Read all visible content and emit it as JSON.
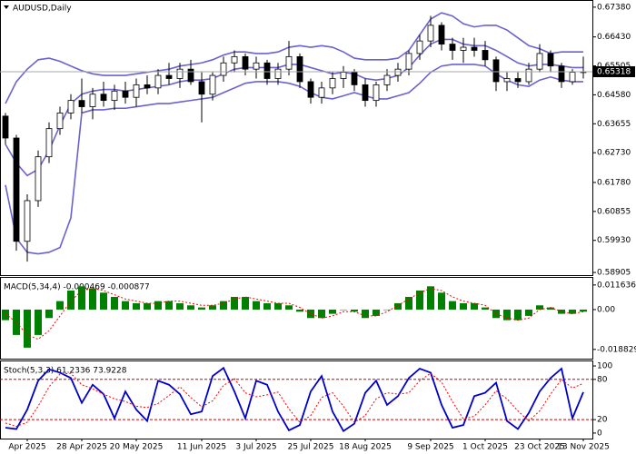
{
  "chart_data": [
    {
      "type": "candlestick",
      "title": "AUDUSD,Daily",
      "categories": [
        null,
        null,
        "Apr 2025",
        null,
        null,
        null,
        null,
        "28 Apr 2025",
        null,
        null,
        null,
        null,
        "20 May 2025",
        null,
        null,
        null,
        null,
        null,
        "11 Jun 2025",
        null,
        null,
        null,
        null,
        "3 Jul 2025",
        null,
        null,
        null,
        null,
        "25 Jul 2025",
        null,
        null,
        null,
        null,
        "18 Aug 2025",
        null,
        null,
        null,
        null,
        null,
        "9 Sep 2025",
        null,
        null,
        null,
        null,
        "1 Oct 2025",
        null,
        null,
        null,
        null,
        "23 Oct 2025",
        null,
        null,
        null,
        "13 Nov 2025"
      ],
      "open": [
        0.639,
        0.632,
        0.599,
        0.612,
        0.626,
        0.635,
        0.64,
        0.644,
        0.642,
        0.646,
        0.644,
        0.647,
        0.645,
        0.649,
        0.648,
        0.652,
        0.651,
        0.654,
        0.65,
        0.646,
        0.652,
        0.656,
        0.658,
        0.654,
        0.656,
        0.651,
        0.654,
        0.658,
        0.65,
        0.645,
        0.648,
        0.651,
        0.653,
        0.649,
        0.644,
        0.649,
        0.652,
        0.654,
        0.659,
        0.663,
        0.668,
        0.662,
        0.66,
        0.661,
        0.66,
        0.657,
        0.65,
        0.651,
        0.65,
        0.654,
        0.659,
        0.655,
        0.65,
        0.653
      ],
      "high": [
        0.64,
        0.633,
        0.614,
        0.628,
        0.637,
        0.642,
        0.646,
        0.651,
        0.648,
        0.65,
        0.649,
        0.65,
        0.651,
        0.652,
        0.654,
        0.656,
        0.656,
        0.657,
        0.653,
        0.653,
        0.658,
        0.66,
        0.659,
        0.658,
        0.657,
        0.656,
        0.663,
        0.659,
        0.651,
        0.65,
        0.653,
        0.655,
        0.654,
        0.651,
        0.65,
        0.654,
        0.656,
        0.66,
        0.665,
        0.671,
        0.669,
        0.664,
        0.664,
        0.664,
        0.663,
        0.658,
        0.653,
        0.653,
        0.656,
        0.662,
        0.66,
        0.656,
        0.654,
        0.658
      ],
      "low": [
        0.63,
        0.596,
        0.5925,
        0.61,
        0.624,
        0.633,
        0.638,
        0.64,
        0.638,
        0.642,
        0.641,
        0.643,
        0.642,
        0.646,
        0.646,
        0.649,
        0.648,
        0.649,
        0.637,
        0.644,
        0.65,
        0.653,
        0.652,
        0.651,
        0.649,
        0.649,
        0.652,
        0.648,
        0.643,
        0.643,
        0.646,
        0.648,
        0.647,
        0.642,
        0.642,
        0.647,
        0.65,
        0.652,
        0.657,
        0.661,
        0.66,
        0.657,
        0.656,
        0.658,
        0.655,
        0.647,
        0.647,
        0.648,
        0.649,
        0.653,
        0.653,
        0.648,
        0.649,
        0.651
      ],
      "close": [
        0.632,
        0.599,
        0.612,
        0.626,
        0.635,
        0.64,
        0.644,
        0.642,
        0.646,
        0.644,
        0.647,
        0.645,
        0.649,
        0.648,
        0.652,
        0.651,
        0.654,
        0.65,
        0.646,
        0.652,
        0.656,
        0.658,
        0.654,
        0.656,
        0.651,
        0.654,
        0.658,
        0.65,
        0.645,
        0.648,
        0.651,
        0.653,
        0.649,
        0.644,
        0.649,
        0.652,
        0.654,
        0.659,
        0.663,
        0.668,
        0.662,
        0.66,
        0.661,
        0.66,
        0.657,
        0.65,
        0.651,
        0.65,
        0.654,
        0.659,
        0.655,
        0.65,
        0.653,
        0.6532
      ],
      "series": [
        {
          "color": "#6a62d0",
          "values": [
            0.643,
            0.65,
            0.654,
            0.657,
            0.6575,
            0.6565,
            0.655,
            0.6535,
            0.6525,
            0.652,
            0.652,
            0.652,
            0.6525,
            0.653,
            0.6535,
            0.654,
            0.655,
            0.6555,
            0.656,
            0.657,
            0.6585,
            0.6595,
            0.6595,
            0.659,
            0.659,
            0.6595,
            0.661,
            0.6615,
            0.661,
            0.6615,
            0.661,
            0.6595,
            0.6575,
            0.657,
            0.657,
            0.657,
            0.6575,
            0.66,
            0.665,
            0.67,
            0.672,
            0.671,
            0.6685,
            0.6675,
            0.668,
            0.668,
            0.6665,
            0.664,
            0.6615,
            0.6605,
            0.659,
            0.6595,
            0.6595,
            0.6595
          ]
        },
        {
          "color": "#6a62d0",
          "values": [
            0.63,
            0.624,
            0.62,
            0.622,
            0.628,
            0.636,
            0.643,
            0.646,
            0.647,
            0.6475,
            0.6475,
            0.647,
            0.6475,
            0.648,
            0.6485,
            0.649,
            0.65,
            0.6505,
            0.6505,
            0.651,
            0.6525,
            0.654,
            0.6545,
            0.6545,
            0.6545,
            0.6545,
            0.6555,
            0.6555,
            0.6545,
            0.6535,
            0.6525,
            0.653,
            0.6525,
            0.651,
            0.6505,
            0.651,
            0.652,
            0.6545,
            0.6585,
            0.662,
            0.6635,
            0.6635,
            0.662,
            0.6615,
            0.6615,
            0.66,
            0.658,
            0.656,
            0.655,
            0.6555,
            0.6555,
            0.655,
            0.6545,
            0.6545
          ]
        },
        {
          "color": "#6a62d0",
          "values": [
            0.617,
            0.6,
            0.5955,
            0.595,
            0.5955,
            0.597,
            0.6065,
            0.64,
            0.641,
            0.641,
            0.6415,
            0.6415,
            0.642,
            0.6425,
            0.643,
            0.643,
            0.6435,
            0.644,
            0.6445,
            0.645,
            0.6465,
            0.648,
            0.6495,
            0.65,
            0.65,
            0.65,
            0.6495,
            0.6485,
            0.6465,
            0.645,
            0.6445,
            0.6455,
            0.6465,
            0.6455,
            0.6445,
            0.6445,
            0.6455,
            0.6465,
            0.6495,
            0.653,
            0.655,
            0.6555,
            0.6555,
            0.6555,
            0.655,
            0.6525,
            0.6505,
            0.649,
            0.6485,
            0.6505,
            0.6515,
            0.6505,
            0.65,
            0.65
          ]
        }
      ],
      "ylim": [
        0.5882,
        0.6758
      ],
      "yticks": [
        {
          "value": 0.6738,
          "label": "0.67380"
        },
        {
          "value": 0.6643,
          "label": "0.66430"
        },
        {
          "value": 0.65505,
          "label": "0.65505"
        },
        {
          "value": 0.6458,
          "label": "0.64580"
        },
        {
          "value": 0.63655,
          "label": "0.63655"
        },
        {
          "value": 0.6273,
          "label": "0.62730"
        },
        {
          "value": 0.6178,
          "label": "0.61780"
        },
        {
          "value": 0.60855,
          "label": "0.60855"
        },
        {
          "value": 0.5993,
          "label": "0.59930"
        },
        {
          "value": 0.58905,
          "label": "0.58905"
        }
      ],
      "last_price": {
        "value": 0.65318,
        "label": "0.65318"
      }
    },
    {
      "type": "bar",
      "title": "MACD(5,34,4) -0.000469 -0.000877",
      "color": "#008000",
      "values": [
        -0.005,
        -0.012,
        -0.018,
        -0.012,
        -0.004,
        0.004,
        0.009,
        0.011,
        0.01,
        0.008,
        0.006,
        0.004,
        0.003,
        0.003,
        0.004,
        0.004,
        0.003,
        0.002,
        0.001,
        0.002,
        0.004,
        0.006,
        0.006,
        0.004,
        0.003,
        0.003,
        0.002,
        -0.001,
        -0.004,
        -0.004,
        -0.002,
        0.0,
        -0.001,
        -0.004,
        -0.003,
        0.0,
        0.003,
        0.006,
        0.009,
        0.011,
        0.008,
        0.004,
        0.003,
        0.003,
        0.001,
        -0.004,
        -0.005,
        -0.005,
        -0.003,
        0.002,
        0.001,
        -0.002,
        -0.002,
        -0.001
      ],
      "series": [
        {
          "color": "#ff0000",
          "dashed": true,
          "values": [
            -0.002,
            -0.006,
            -0.012,
            -0.014,
            -0.01,
            -0.003,
            0.004,
            0.009,
            0.01,
            0.009,
            0.007,
            0.005,
            0.004,
            0.003,
            0.003,
            0.004,
            0.004,
            0.003,
            0.002,
            0.002,
            0.003,
            0.005,
            0.006,
            0.005,
            0.004,
            0.003,
            0.003,
            0.001,
            -0.002,
            -0.004,
            -0.003,
            -0.001,
            -0.001,
            -0.003,
            -0.003,
            -0.001,
            0.002,
            0.005,
            0.008,
            0.01,
            0.009,
            0.006,
            0.004,
            0.003,
            0.002,
            -0.002,
            -0.004,
            -0.005,
            -0.004,
            0.0,
            0.001,
            -0.001,
            -0.002,
            -0.001
          ]
        }
      ],
      "ylim": [
        -0.0232,
        0.015
      ],
      "yticks": [
        0.011636,
        {
          "value": 0,
          "label": "0.00"
        },
        -0.018829
      ]
    },
    {
      "type": "line",
      "title": "Stoch(5,3,3) 61.2336 73.9228",
      "series": [
        {
          "color": "#0000cc",
          "dashed": false,
          "values": [
            8,
            6,
            35,
            78,
            95,
            90,
            82,
            45,
            72,
            58,
            22,
            62,
            35,
            18,
            78,
            72,
            58,
            28,
            32,
            85,
            97,
            62,
            22,
            78,
            72,
            32,
            4,
            12,
            62,
            85,
            32,
            3,
            14,
            60,
            78,
            42,
            55,
            82,
            96,
            90,
            42,
            8,
            12,
            55,
            60,
            75,
            18,
            6,
            30,
            62,
            82,
            96,
            22,
            61
          ]
        },
        {
          "color": "#ff0000",
          "dashed": true,
          "values": [
            15,
            10,
            16,
            40,
            69,
            88,
            89,
            72,
            66,
            58,
            51,
            47,
            40,
            38,
            44,
            56,
            69,
            53,
            39,
            48,
            71,
            81,
            60,
            54,
            57,
            61,
            36,
            16,
            26,
            53,
            60,
            40,
            16,
            26,
            51,
            60,
            58,
            60,
            78,
            89,
            76,
            47,
            21,
            25,
            42,
            63,
            51,
            33,
            18,
            33,
            58,
            80,
            67,
            74
          ]
        }
      ],
      "levels": [
        80,
        20
      ],
      "level_color": "#cc0000",
      "ylim": [
        -8.2,
        106.8
      ],
      "yticks": [
        100,
        80,
        20,
        0
      ]
    }
  ]
}
